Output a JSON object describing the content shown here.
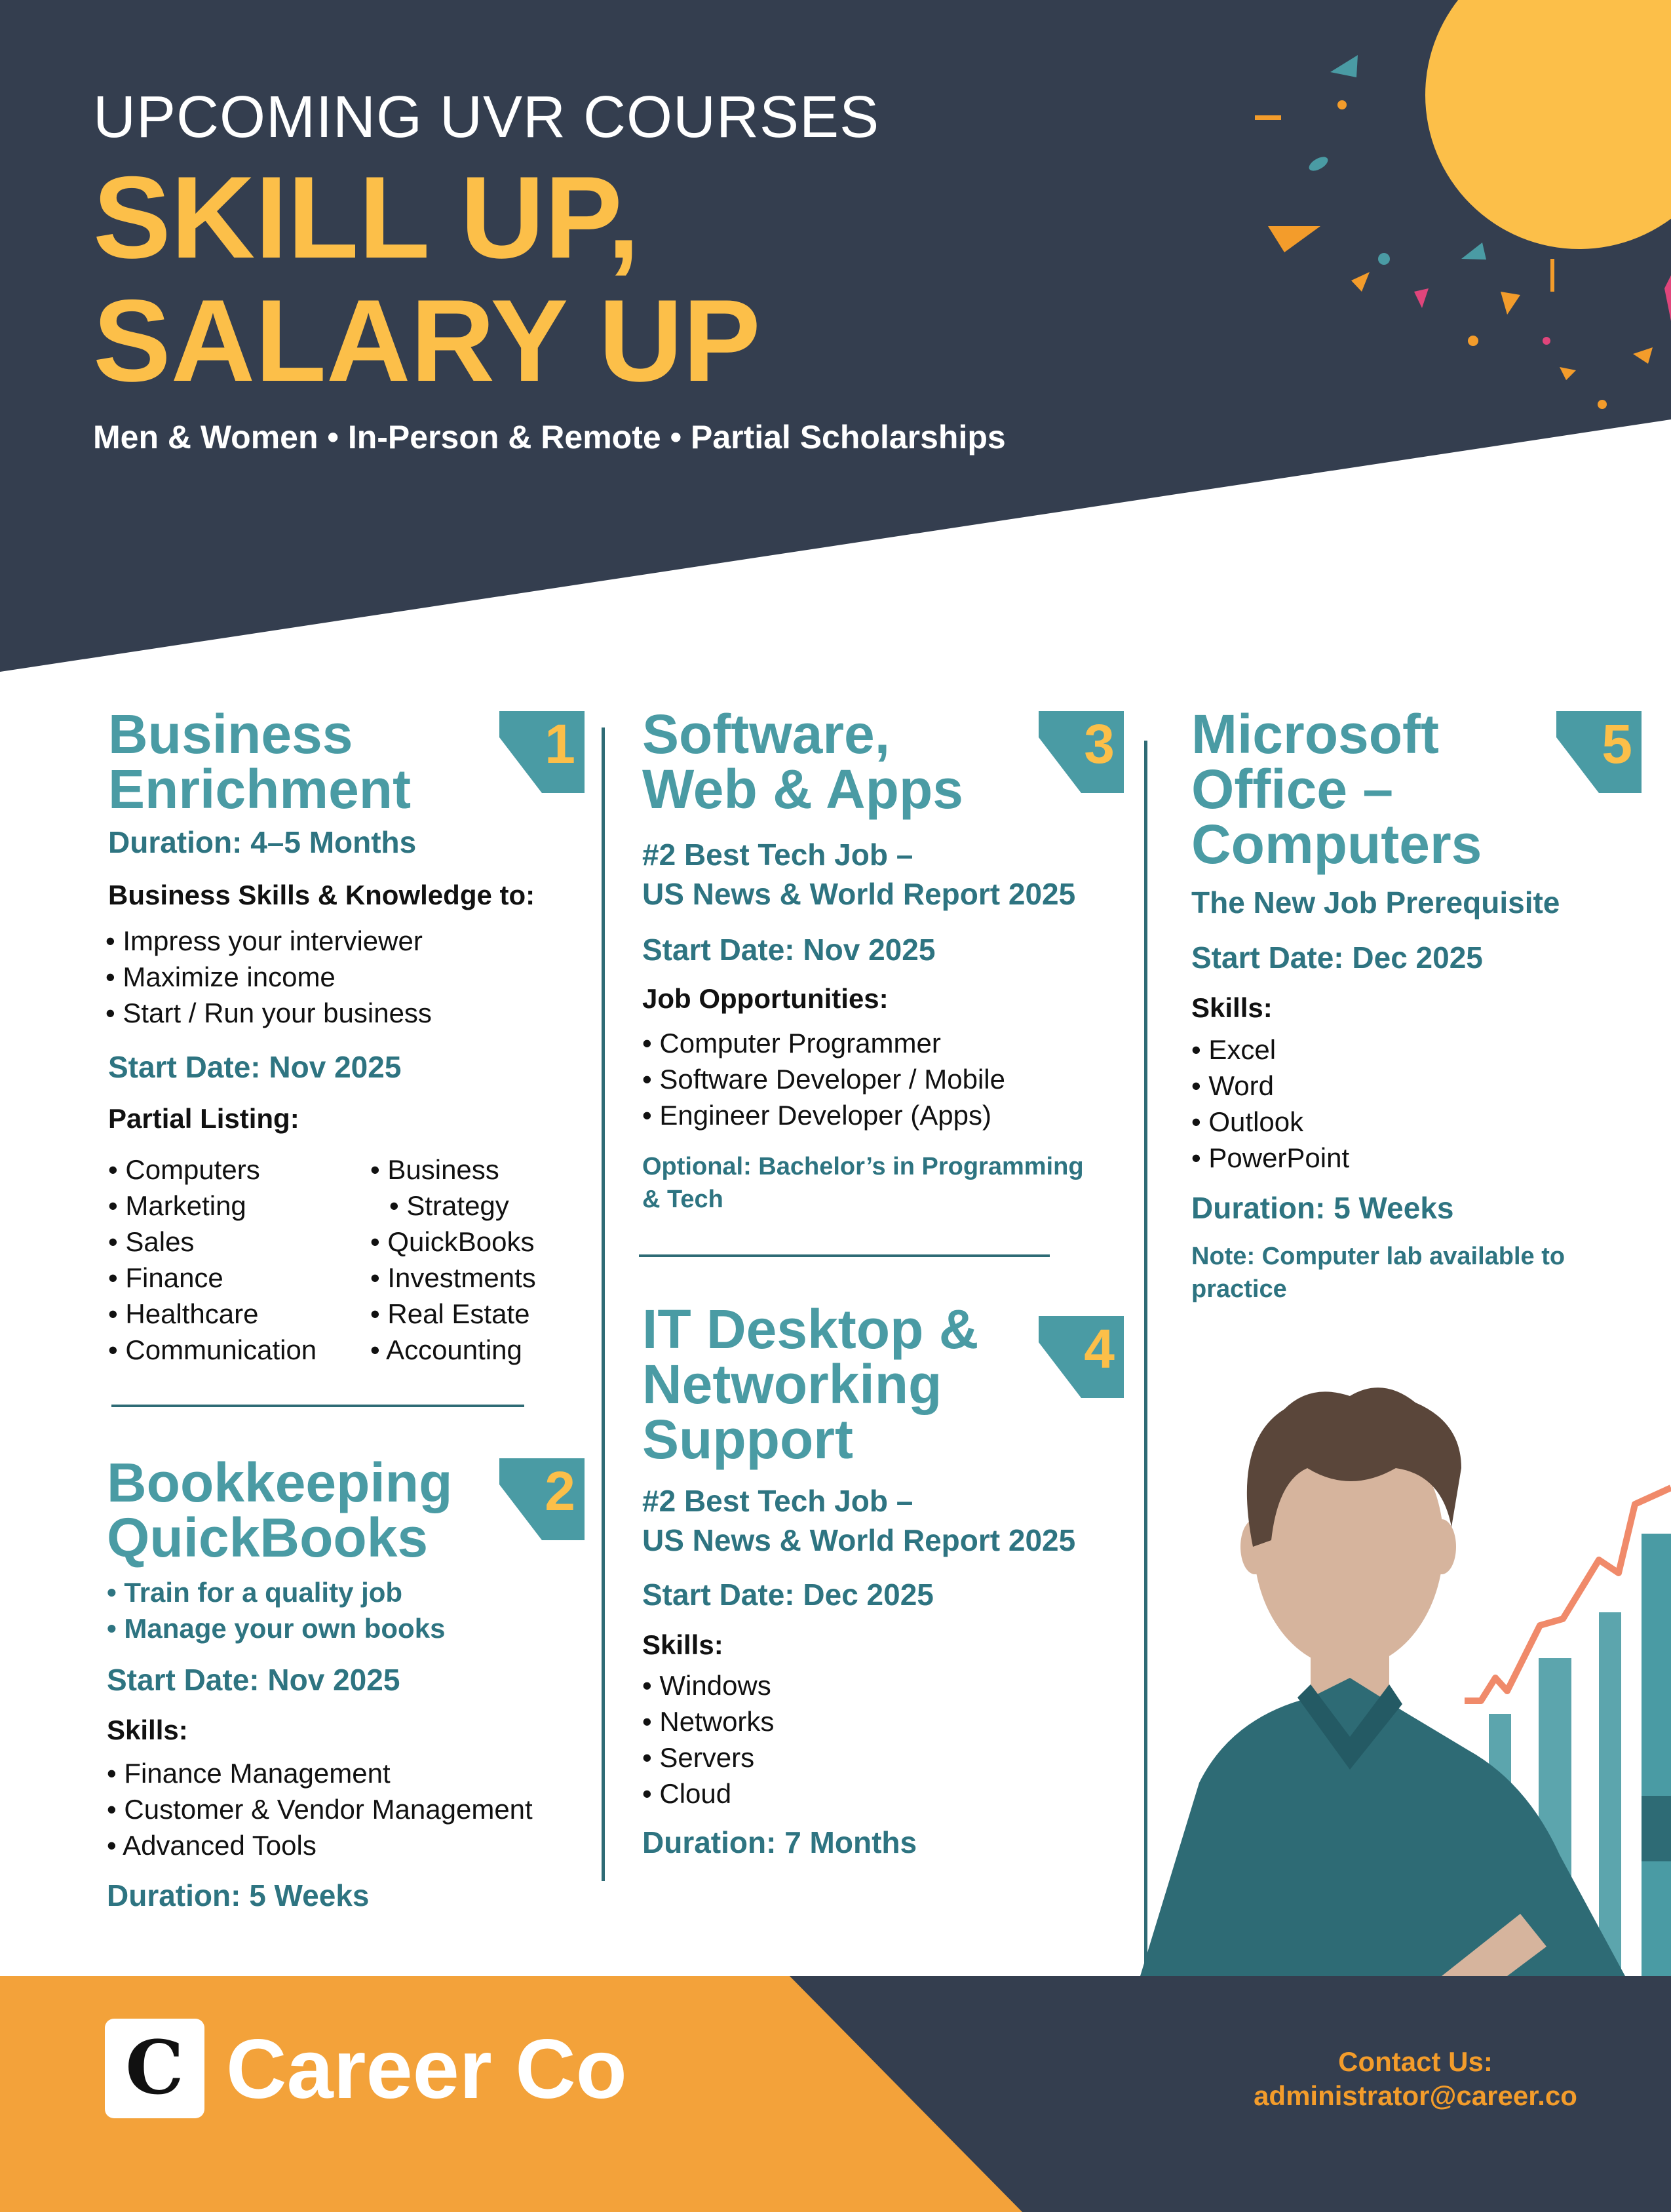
{
  "header": {
    "eyebrow": "UPCOMING UVR COURSES",
    "headline_line1": "SKILL UP,",
    "headline_line2": "SALARY UP",
    "tagline": "Men & Women • In-Person & Remote • Partial Scholarships"
  },
  "courses": [
    {
      "number": "1",
      "title": [
        "Business",
        "Enrichment"
      ],
      "duration": "Duration: 4–5 Months",
      "skills_heading": "Business Skills & Knowledge to:",
      "skills": [
        "Impress your interviewer",
        "Maximize income",
        "Start / Run your business"
      ],
      "start": "Start Date: Nov 2025",
      "listing_heading": "Partial Listing:",
      "listing_col1": [
        "Computers",
        "Marketing",
        "Sales",
        "Finance",
        "Healthcare",
        "Communication"
      ],
      "listing_col2": [
        "Business",
        "Strategy",
        "QuickBooks",
        "Investments",
        "Real Estate",
        "Accounting"
      ]
    },
    {
      "number": "2",
      "title": [
        "Bookkeeping",
        "QuickBooks"
      ],
      "highlights": [
        "Train for a quality job",
        "Manage your own books"
      ],
      "start": "Start Date: Nov 2025",
      "skills_heading": "Skills:",
      "skills": [
        "Finance Management",
        "Customer & Vendor Management",
        "Advanced Tools"
      ],
      "duration": "Duration: 5 Weeks"
    },
    {
      "number": "3",
      "title": [
        "Software,",
        "Web & Apps"
      ],
      "subtitle": [
        "#2 Best Tech Job –",
        "US News & World Report 2025"
      ],
      "start": "Start Date: Nov 2025",
      "skills_heading": "Job Opportunities:",
      "skills": [
        "Computer Programmer",
        "Software Developer / Mobile",
        "Engineer Developer (Apps)"
      ],
      "note": [
        "Optional: Bachelor’s in Programming",
        "& Tech"
      ]
    },
    {
      "number": "4",
      "title": [
        "IT Desktop &",
        "Networking",
        "Support"
      ],
      "subtitle": [
        "#2 Best Tech Job –",
        "US News & World Report 2025"
      ],
      "start": "Start Date: Dec 2025",
      "skills_heading": "Skills:",
      "skills": [
        "Windows",
        "Networks",
        "Servers",
        "Cloud"
      ],
      "duration": "Duration: 7 Months"
    },
    {
      "number": "5",
      "title": [
        "Microsoft",
        "Office –",
        "Computers"
      ],
      "subtitle": [
        "The New Job Prerequisite"
      ],
      "start": "Start Date: Dec 2025",
      "skills_heading": "Skills:",
      "skills": [
        "Excel",
        "Word",
        "Outlook",
        "PowerPoint"
      ],
      "duration": "Duration: 5 Weeks",
      "note": [
        "Note: Computer lab available to",
        "practice"
      ]
    }
  ],
  "footer": {
    "logo_letter": "C",
    "brand": "Career Co",
    "contact_heading": "Contact Us:",
    "contact_email": "administrator@career.co"
  },
  "colors": {
    "navy": "#343e4f",
    "gold": "#fcbf49",
    "orange": "#f39c2b",
    "teal": "#4a9ba4",
    "teal_dark": "#2e7481"
  }
}
